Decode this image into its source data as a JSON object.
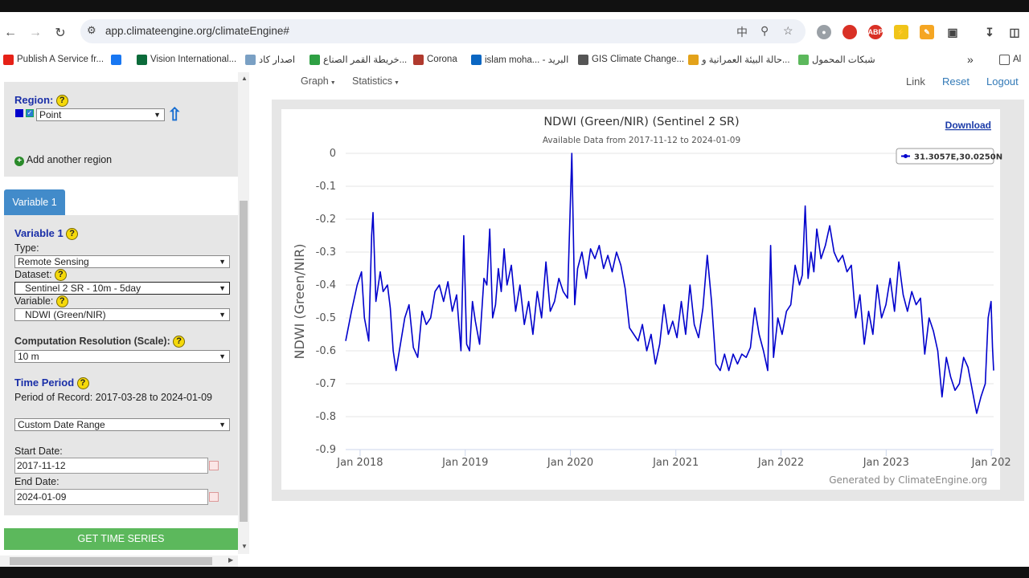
{
  "browser": {
    "url": "app.climateengine.org/climateEngine#",
    "bookmarks": [
      {
        "label": "Publish A Service fr...",
        "color": "#e62117"
      },
      {
        "label": "",
        "color": "#1877f2"
      },
      {
        "label": "Vision International...",
        "color": "#0b6b3a"
      },
      {
        "label": "اصدار كاد",
        "color": "#7aa0c4"
      },
      {
        "label": "خريطة القمر الصناع...",
        "color": "#2ea043"
      },
      {
        "label": "Corona",
        "color": "#b03a2e"
      },
      {
        "label": "islam moha... - البريد",
        "color": "#0a66c2"
      },
      {
        "label": "GIS Climate Change...",
        "color": "#555555"
      },
      {
        "label": "حالة البيئة العمرانية و...",
        "color": "#e3a21a"
      },
      {
        "label": "شبكات المحمول",
        "color": "#5cb85c"
      }
    ],
    "bookmarks_more": "»",
    "all_bookmarks": "Al"
  },
  "sidebar": {
    "region_label": "Region:",
    "region_select": "Point",
    "add_region": "Add another region",
    "variable_tab": "Variable 1",
    "variable_heading": "Variable 1",
    "type_label": "Type:",
    "type_value": "Remote Sensing",
    "dataset_label": "Dataset:",
    "dataset_value": "Sentinel 2 SR - 10m - 5day",
    "variable_label": "Variable:",
    "variable_value": "NDWI (Green/NIR)",
    "scale_label": "Computation Resolution (Scale):",
    "scale_value": "10 m",
    "time_period_label": "Time Period",
    "period_of_record": "Period of Record: 2017-03-28 to 2024-01-09",
    "range_select": "Custom Date Range",
    "start_label": "Start Date:",
    "start_value": "2017-11-12",
    "end_label": "End Date:",
    "end_value": "2024-01-09",
    "get_button": "GET TIME SERIES",
    "help_glyph": "?"
  },
  "topmenu": {
    "graph": "Graph",
    "statistics": "Statistics",
    "link": "Link",
    "reset": "Reset",
    "logout": "Logout"
  },
  "colors": {
    "series": "#0000cc",
    "button_green": "#5cb85c",
    "tab_blue": "#428bca",
    "link_blue": "#337ab7"
  },
  "chart_data": {
    "type": "line",
    "title": "NDWI (Green/NIR) (Sentinel 2 SR)",
    "subtitle": "Available Data from 2017-11-12 to 2024-01-09",
    "download": "Download",
    "ylabel": "NDWI (Green/NIR)",
    "xlabel": "",
    "credit": "Generated by ClimateEngine.org",
    "ylim": [
      -0.9,
      0
    ],
    "xlim": [
      "2017-11-12",
      "2024-01-09"
    ],
    "yticks": [
      0,
      -0.1,
      -0.2,
      -0.3,
      -0.4,
      -0.5,
      -0.6,
      -0.7,
      -0.8,
      -0.9
    ],
    "ytick_labels": [
      "0",
      "-0.1",
      "-0.2",
      "-0.3",
      "-0.4",
      "-0.5",
      "-0.6",
      "-0.7",
      "-0.8",
      "-0.9"
    ],
    "xticks": [
      "2018-01-01",
      "2019-01-01",
      "2020-01-01",
      "2021-01-01",
      "2022-01-01",
      "2023-01-01",
      "2024-01-01"
    ],
    "xtick_labels": [
      "Jan 2018",
      "Jan 2019",
      "Jan 2020",
      "Jan 2021",
      "Jan 2022",
      "Jan 2023",
      "Jan 202"
    ],
    "grid": true,
    "legend_position": "top-right",
    "series": [
      {
        "name": "31.3057E,30.0250N",
        "points": [
          [
            "2017-11-12",
            -0.57
          ],
          [
            "2017-12-02",
            -0.48
          ],
          [
            "2017-12-22",
            -0.4
          ],
          [
            "2018-01-06",
            -0.36
          ],
          [
            "2018-01-16",
            -0.5
          ],
          [
            "2018-01-31",
            -0.57
          ],
          [
            "2018-02-10",
            -0.25
          ],
          [
            "2018-02-15",
            -0.18
          ],
          [
            "2018-02-25",
            -0.45
          ],
          [
            "2018-03-12",
            -0.36
          ],
          [
            "2018-03-22",
            -0.42
          ],
          [
            "2018-04-06",
            -0.4
          ],
          [
            "2018-04-16",
            -0.47
          ],
          [
            "2018-04-26",
            -0.6
          ],
          [
            "2018-05-06",
            -0.66
          ],
          [
            "2018-05-21",
            -0.58
          ],
          [
            "2018-06-05",
            -0.5
          ],
          [
            "2018-06-20",
            -0.46
          ],
          [
            "2018-07-05",
            -0.59
          ],
          [
            "2018-07-20",
            -0.62
          ],
          [
            "2018-08-04",
            -0.48
          ],
          [
            "2018-08-19",
            -0.52
          ],
          [
            "2018-09-03",
            -0.5
          ],
          [
            "2018-09-18",
            -0.42
          ],
          [
            "2018-10-03",
            -0.4
          ],
          [
            "2018-10-18",
            -0.45
          ],
          [
            "2018-11-02",
            -0.39
          ],
          [
            "2018-11-17",
            -0.48
          ],
          [
            "2018-12-02",
            -0.43
          ],
          [
            "2018-12-17",
            -0.6
          ],
          [
            "2018-12-27",
            -0.25
          ],
          [
            "2019-01-06",
            -0.58
          ],
          [
            "2019-01-16",
            -0.6
          ],
          [
            "2019-01-26",
            -0.45
          ],
          [
            "2019-02-05",
            -0.51
          ],
          [
            "2019-02-20",
            -0.58
          ],
          [
            "2019-03-07",
            -0.38
          ],
          [
            "2019-03-17",
            -0.4
          ],
          [
            "2019-03-27",
            -0.23
          ],
          [
            "2019-04-06",
            -0.5
          ],
          [
            "2019-04-16",
            -0.46
          ],
          [
            "2019-04-26",
            -0.35
          ],
          [
            "2019-05-06",
            -0.42
          ],
          [
            "2019-05-16",
            -0.29
          ],
          [
            "2019-05-26",
            -0.4
          ],
          [
            "2019-06-10",
            -0.34
          ],
          [
            "2019-06-25",
            -0.48
          ],
          [
            "2019-07-10",
            -0.4
          ],
          [
            "2019-07-25",
            -0.52
          ],
          [
            "2019-08-09",
            -0.45
          ],
          [
            "2019-08-24",
            -0.55
          ],
          [
            "2019-09-08",
            -0.42
          ],
          [
            "2019-09-23",
            -0.5
          ],
          [
            "2019-10-08",
            -0.33
          ],
          [
            "2019-10-23",
            -0.48
          ],
          [
            "2019-11-07",
            -0.45
          ],
          [
            "2019-11-22",
            -0.38
          ],
          [
            "2019-12-07",
            -0.42
          ],
          [
            "2019-12-22",
            -0.44
          ],
          [
            "2020-01-06",
            -0.0
          ],
          [
            "2020-01-16",
            -0.46
          ],
          [
            "2020-01-26",
            -0.35
          ],
          [
            "2020-02-10",
            -0.3
          ],
          [
            "2020-02-25",
            -0.38
          ],
          [
            "2020-03-11",
            -0.29
          ],
          [
            "2020-03-26",
            -0.32
          ],
          [
            "2020-04-10",
            -0.28
          ],
          [
            "2020-04-25",
            -0.35
          ],
          [
            "2020-05-10",
            -0.31
          ],
          [
            "2020-05-25",
            -0.36
          ],
          [
            "2020-06-09",
            -0.3
          ],
          [
            "2020-06-24",
            -0.34
          ],
          [
            "2020-07-09",
            -0.41
          ],
          [
            "2020-07-24",
            -0.53
          ],
          [
            "2020-08-08",
            -0.55
          ],
          [
            "2020-08-23",
            -0.57
          ],
          [
            "2020-09-07",
            -0.52
          ],
          [
            "2020-09-22",
            -0.6
          ],
          [
            "2020-10-07",
            -0.55
          ],
          [
            "2020-10-22",
            -0.64
          ],
          [
            "2020-11-06",
            -0.58
          ],
          [
            "2020-11-21",
            -0.46
          ],
          [
            "2020-12-06",
            -0.55
          ],
          [
            "2020-12-21",
            -0.51
          ],
          [
            "2021-01-05",
            -0.56
          ],
          [
            "2021-01-20",
            -0.45
          ],
          [
            "2021-02-04",
            -0.55
          ],
          [
            "2021-02-19",
            -0.4
          ],
          [
            "2021-03-06",
            -0.52
          ],
          [
            "2021-03-21",
            -0.56
          ],
          [
            "2021-04-05",
            -0.47
          ],
          [
            "2021-04-20",
            -0.31
          ],
          [
            "2021-05-05",
            -0.45
          ],
          [
            "2021-05-20",
            -0.64
          ],
          [
            "2021-06-04",
            -0.66
          ],
          [
            "2021-06-19",
            -0.61
          ],
          [
            "2021-07-04",
            -0.66
          ],
          [
            "2021-07-19",
            -0.61
          ],
          [
            "2021-08-03",
            -0.64
          ],
          [
            "2021-08-18",
            -0.61
          ],
          [
            "2021-09-02",
            -0.62
          ],
          [
            "2021-09-17",
            -0.59
          ],
          [
            "2021-10-02",
            -0.47
          ],
          [
            "2021-10-17",
            -0.55
          ],
          [
            "2021-11-01",
            -0.6
          ],
          [
            "2021-11-16",
            -0.66
          ],
          [
            "2021-11-26",
            -0.28
          ],
          [
            "2021-12-06",
            -0.62
          ],
          [
            "2021-12-21",
            -0.5
          ],
          [
            "2022-01-05",
            -0.55
          ],
          [
            "2022-01-20",
            -0.48
          ],
          [
            "2022-02-04",
            -0.46
          ],
          [
            "2022-02-19",
            -0.34
          ],
          [
            "2022-03-06",
            -0.4
          ],
          [
            "2022-03-16",
            -0.37
          ],
          [
            "2022-03-26",
            -0.16
          ],
          [
            "2022-04-05",
            -0.38
          ],
          [
            "2022-04-15",
            -0.3
          ],
          [
            "2022-04-25",
            -0.36
          ],
          [
            "2022-05-05",
            -0.23
          ],
          [
            "2022-05-20",
            -0.32
          ],
          [
            "2022-06-04",
            -0.28
          ],
          [
            "2022-06-19",
            -0.22
          ],
          [
            "2022-07-04",
            -0.3
          ],
          [
            "2022-07-19",
            -0.33
          ],
          [
            "2022-08-03",
            -0.31
          ],
          [
            "2022-08-18",
            -0.36
          ],
          [
            "2022-09-02",
            -0.34
          ],
          [
            "2022-09-17",
            -0.5
          ],
          [
            "2022-10-02",
            -0.43
          ],
          [
            "2022-10-17",
            -0.58
          ],
          [
            "2022-11-01",
            -0.48
          ],
          [
            "2022-11-16",
            -0.55
          ],
          [
            "2022-12-01",
            -0.4
          ],
          [
            "2022-12-16",
            -0.5
          ],
          [
            "2022-12-31",
            -0.46
          ],
          [
            "2023-01-15",
            -0.38
          ],
          [
            "2023-01-30",
            -0.48
          ],
          [
            "2023-02-14",
            -0.33
          ],
          [
            "2023-03-01",
            -0.43
          ],
          [
            "2023-03-16",
            -0.48
          ],
          [
            "2023-03-31",
            -0.42
          ],
          [
            "2023-04-15",
            -0.46
          ],
          [
            "2023-04-30",
            -0.44
          ],
          [
            "2023-05-15",
            -0.61
          ],
          [
            "2023-05-30",
            -0.5
          ],
          [
            "2023-06-14",
            -0.54
          ],
          [
            "2023-06-29",
            -0.6
          ],
          [
            "2023-07-14",
            -0.74
          ],
          [
            "2023-07-29",
            -0.62
          ],
          [
            "2023-08-13",
            -0.68
          ],
          [
            "2023-08-28",
            -0.72
          ],
          [
            "2023-09-12",
            -0.7
          ],
          [
            "2023-09-27",
            -0.62
          ],
          [
            "2023-10-12",
            -0.65
          ],
          [
            "2023-10-27",
            -0.72
          ],
          [
            "2023-11-11",
            -0.79
          ],
          [
            "2023-11-26",
            -0.74
          ],
          [
            "2023-12-11",
            -0.7
          ],
          [
            "2023-12-21",
            -0.5
          ],
          [
            "2023-12-31",
            -0.45
          ],
          [
            "2024-01-05",
            -0.59
          ],
          [
            "2024-01-09",
            -0.66
          ]
        ]
      }
    ]
  }
}
